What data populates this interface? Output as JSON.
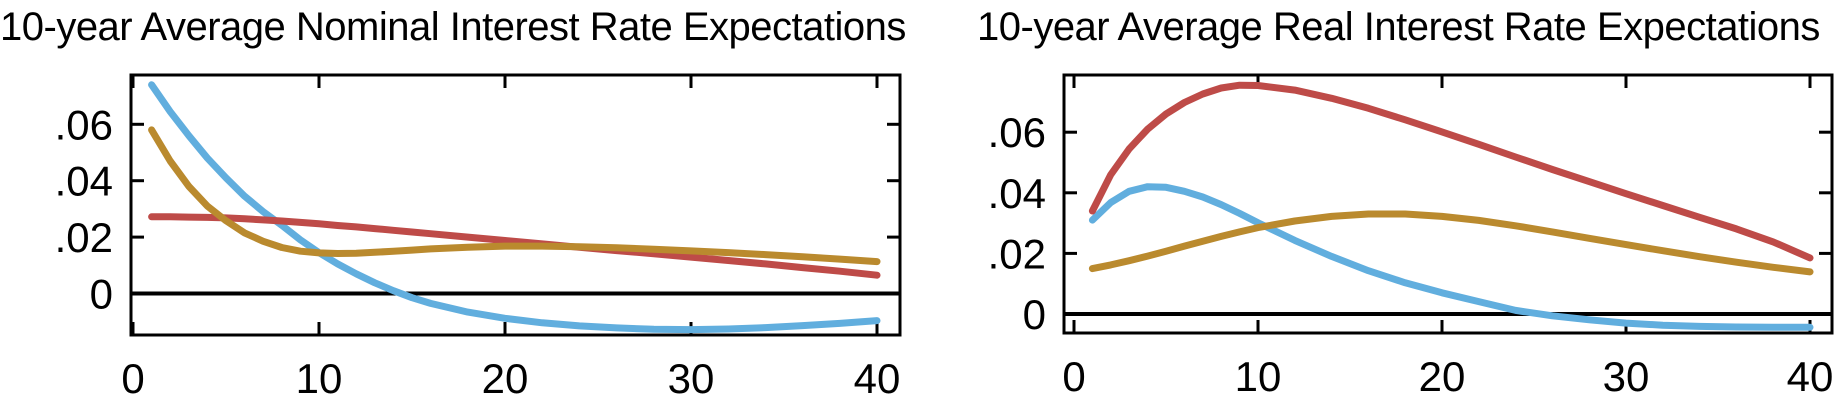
{
  "background": "#ffffff",
  "text_color": "#000000",
  "charts": [
    {
      "title": "10-year Average Nominal Interest Rate Expectations",
      "chart_data": {
        "type": "line",
        "title": "10-year Average Nominal Interest Rate Expectations",
        "xlabel": "",
        "ylabel": "",
        "xlim": [
          0,
          41.3
        ],
        "ylim": [
          -0.0147,
          0.0775
        ],
        "grid": false,
        "legend": "none",
        "zero_line": {
          "value": 0,
          "color": "#000000"
        },
        "x_ticks": [
          {
            "value": 0,
            "label": "0"
          },
          {
            "value": 10,
            "label": "10"
          },
          {
            "value": 20,
            "label": "20"
          },
          {
            "value": 30,
            "label": "30"
          },
          {
            "value": 40,
            "label": "40"
          }
        ],
        "y_ticks": [
          {
            "value": 0,
            "label": "0"
          },
          {
            "value": 0.02,
            "label": ".02"
          },
          {
            "value": 0.04,
            "label": ".04"
          },
          {
            "value": 0.06,
            "label": ".06"
          }
        ],
        "x": [
          1,
          2,
          3,
          4,
          5,
          6,
          7,
          8,
          9,
          10,
          11,
          12,
          13,
          14,
          15,
          16,
          18,
          20,
          22,
          24,
          26,
          28,
          30,
          32,
          34,
          36,
          38,
          40
        ],
        "series": [
          {
            "name": "light-blue",
            "color": "#61aede",
            "values": [
              0.074,
              0.0645,
              0.056,
              0.048,
              0.041,
              0.0345,
              0.029,
              0.0242,
              0.019,
              0.0145,
              0.0105,
              0.007,
              0.0038,
              0.001,
              -0.0015,
              -0.0035,
              -0.0066,
              -0.0088,
              -0.0104,
              -0.0115,
              -0.0122,
              -0.0127,
              -0.0128,
              -0.0126,
              -0.0121,
              -0.0114,
              -0.0106,
              -0.0096
            ]
          },
          {
            "name": "red",
            "color": "#be4b48",
            "values": [
              0.0272,
              0.0272,
              0.0271,
              0.027,
              0.0268,
              0.0265,
              0.0261,
              0.0257,
              0.0252,
              0.0247,
              0.0241,
              0.0236,
              0.023,
              0.0224,
              0.0218,
              0.0212,
              0.02,
              0.0188,
              0.0176,
              0.0164,
              0.0152,
              0.0141,
              0.0129,
              0.0117,
              0.0105,
              0.0092,
              0.0079,
              0.0065
            ]
          },
          {
            "name": "gold",
            "color": "#ba8a2e",
            "values": [
              0.058,
              0.047,
              0.038,
              0.031,
              0.0258,
              0.0215,
              0.0185,
              0.0163,
              0.015,
              0.0144,
              0.0142,
              0.0143,
              0.0146,
              0.015,
              0.0154,
              0.0158,
              0.0164,
              0.0168,
              0.0168,
              0.0166,
              0.0162,
              0.0157,
              0.0151,
              0.0145,
              0.0138,
              0.013,
              0.0122,
              0.0113
            ]
          }
        ]
      }
    },
    {
      "title": "10-year Average Real Interest Rate Expectations",
      "chart_data": {
        "type": "line",
        "title": "10-year Average Real Interest Rate Expectations",
        "xlabel": "",
        "ylabel": "",
        "xlim": [
          0,
          41.2
        ],
        "ylim": [
          -0.0063,
          0.0787
        ],
        "grid": false,
        "legend": "none",
        "zero_line": {
          "value": 0,
          "color": "#000000"
        },
        "x_ticks": [
          {
            "value": 0,
            "label": "0"
          },
          {
            "value": 10,
            "label": "10"
          },
          {
            "value": 20,
            "label": "20"
          },
          {
            "value": 30,
            "label": "30"
          },
          {
            "value": 40,
            "label": "40"
          }
        ],
        "y_ticks": [
          {
            "value": 0,
            "label": "0"
          },
          {
            "value": 0.02,
            "label": ".02"
          },
          {
            "value": 0.04,
            "label": ".04"
          },
          {
            "value": 0.06,
            "label": ".06"
          }
        ],
        "x": [
          1,
          2,
          3,
          4,
          5,
          6,
          7,
          8,
          9,
          10,
          12,
          14,
          16,
          18,
          20,
          22,
          24,
          26,
          28,
          30,
          32,
          34,
          36,
          38,
          40
        ],
        "series": [
          {
            "name": "light-blue",
            "color": "#61aede",
            "values": [
              0.031,
              0.0368,
              0.0405,
              0.042,
              0.0418,
              0.0405,
              0.0386,
              0.0361,
              0.0332,
              0.0301,
              0.0243,
              0.019,
              0.0143,
              0.0103,
              0.007,
              0.0041,
              0.0012,
              -0.0006,
              -0.0019,
              -0.003,
              -0.0037,
              -0.0041,
              -0.0043,
              -0.0044,
              -0.0044
            ]
          },
          {
            "name": "red",
            "color": "#be4b48",
            "values": [
              0.034,
              0.046,
              0.0545,
              0.061,
              0.066,
              0.0698,
              0.0726,
              0.0746,
              0.0755,
              0.0754,
              0.0739,
              0.0712,
              0.0679,
              0.0641,
              0.0601,
              0.056,
              0.0518,
              0.0477,
              0.0437,
              0.0397,
              0.0358,
              0.0319,
              0.0281,
              0.0238,
              0.0185
            ]
          },
          {
            "name": "gold",
            "color": "#ba8a2e",
            "values": [
              0.015,
              0.0162,
              0.0176,
              0.0191,
              0.0207,
              0.0224,
              0.024,
              0.0256,
              0.0271,
              0.0285,
              0.0307,
              0.0322,
              0.033,
              0.033,
              0.0322,
              0.0309,
              0.0291,
              0.0271,
              0.025,
              0.0229,
              0.0209,
              0.0189,
              0.0171,
              0.0154,
              0.0139
            ]
          }
        ]
      }
    }
  ]
}
